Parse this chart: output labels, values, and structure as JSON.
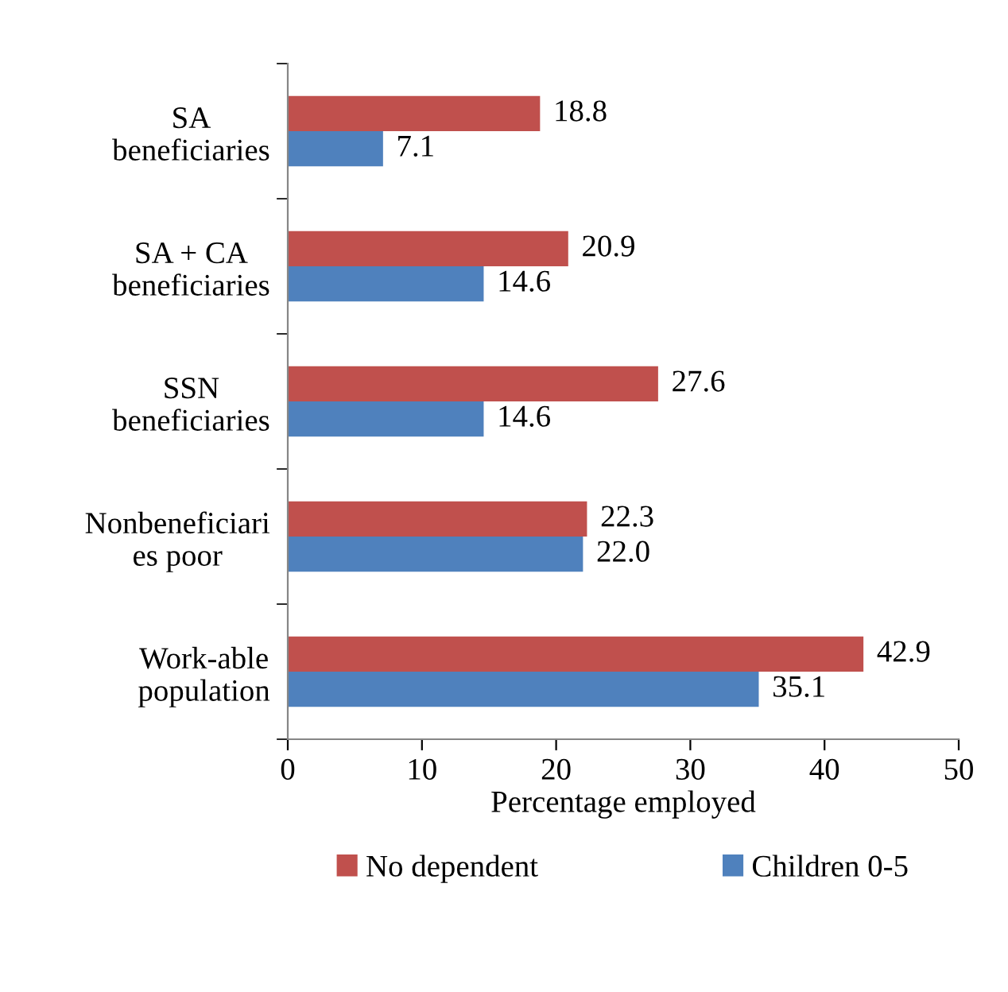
{
  "chart_data": {
    "type": "bar",
    "orientation": "horizontal",
    "xlabel": "Percentage employed",
    "categories": [
      "SA\nbeneficiaries",
      "SA + CA\nbeneficiaries",
      "SSN\nbeneficiaries",
      "Nonbeneficiari\nes poor",
      "Work-able\npopulation"
    ],
    "series": [
      {
        "name": "No dependent",
        "color": "#c0504d",
        "values": [
          18.8,
          20.9,
          27.6,
          22.3,
          42.9
        ],
        "value_labels": [
          "18.8",
          "20.9",
          "27.6",
          "22.3",
          "42.9"
        ]
      },
      {
        "name": "Children 0-5",
        "color": "#4f81bd",
        "values": [
          7.1,
          14.6,
          14.6,
          22.0,
          35.1
        ],
        "value_labels": [
          "7.1",
          "14.6",
          "14.6",
          "22.0",
          "35.1"
        ]
      }
    ],
    "xlim": [
      0,
      50
    ],
    "xticks": [
      0,
      10,
      20,
      30,
      40,
      50
    ],
    "legend": "bottom",
    "grid": false
  }
}
